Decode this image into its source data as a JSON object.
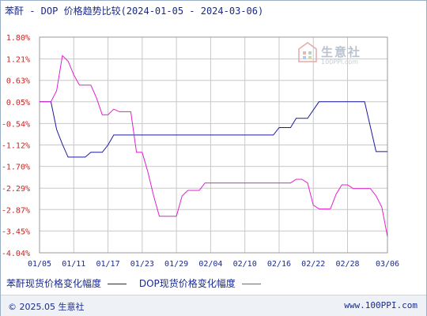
{
  "title": "苯酐 - DOP 价格趋势比较(2024-01-05 - 2024-03-06)",
  "footer": {
    "copyright": "© 2025.05 生意社",
    "url": "www.100PPI.com"
  },
  "watermark": {
    "text": "生意社",
    "url": "100PPI.com"
  },
  "colors": {
    "series_a": "#1a1aa0",
    "series_b": "#e020d0",
    "grid": "#c8c8c8",
    "ytick": "#cc2222",
    "xtick": "#1a2a8c"
  },
  "chart_data": {
    "type": "line",
    "xlim": [
      "2024-01-05",
      "2024-03-06"
    ],
    "ylim": [
      -4.04,
      1.8
    ],
    "ytick_labels": [
      "1.80%",
      "1.21%",
      "0.63%",
      "0.05%",
      "-0.54%",
      "-1.12%",
      "-1.70%",
      "-2.29%",
      "-2.87%",
      "-3.45%",
      "-4.04%"
    ],
    "ytick_values": [
      1.8,
      1.21,
      0.63,
      0.05,
      -0.54,
      -1.12,
      -1.7,
      -2.29,
      -2.87,
      -3.45,
      -4.04
    ],
    "xtick_labels": [
      "01/05",
      "01/11",
      "01/17",
      "01/23",
      "01/29",
      "02/04",
      "02/10",
      "02/16",
      "02/22",
      "02/28",
      "03/06"
    ],
    "xtick_dates": [
      "2024-01-05",
      "2024-01-11",
      "2024-01-17",
      "2024-01-23",
      "2024-01-29",
      "2024-02-04",
      "2024-02-10",
      "2024-02-16",
      "2024-02-22",
      "2024-02-28",
      "2024-03-06"
    ],
    "grid": true,
    "series": [
      {
        "name": "苯酐现货价格变化幅度",
        "points": [
          [
            "2024-01-05",
            0.05
          ],
          [
            "2024-01-07",
            0.05
          ],
          [
            "2024-01-08",
            -0.7
          ],
          [
            "2024-01-09",
            -1.1
          ],
          [
            "2024-01-10",
            -1.45
          ],
          [
            "2024-01-13",
            -1.45
          ],
          [
            "2024-01-14",
            -1.32
          ],
          [
            "2024-01-16",
            -1.32
          ],
          [
            "2024-01-17",
            -1.12
          ],
          [
            "2024-01-18",
            -0.85
          ],
          [
            "2024-02-15",
            -0.85
          ],
          [
            "2024-02-16",
            -0.65
          ],
          [
            "2024-02-18",
            -0.65
          ],
          [
            "2024-02-19",
            -0.4
          ],
          [
            "2024-02-21",
            -0.4
          ],
          [
            "2024-02-23",
            0.05
          ],
          [
            "2024-03-02",
            0.05
          ],
          [
            "2024-03-04",
            -1.3
          ],
          [
            "2024-03-06",
            -1.3
          ]
        ]
      },
      {
        "name": "DOP现货价格变化幅度",
        "points": [
          [
            "2024-01-05",
            0.05
          ],
          [
            "2024-01-07",
            0.05
          ],
          [
            "2024-01-08",
            0.35
          ],
          [
            "2024-01-09",
            1.3
          ],
          [
            "2024-01-10",
            1.15
          ],
          [
            "2024-01-11",
            0.78
          ],
          [
            "2024-01-12",
            0.5
          ],
          [
            "2024-01-14",
            0.5
          ],
          [
            "2024-01-15",
            0.15
          ],
          [
            "2024-01-16",
            -0.3
          ],
          [
            "2024-01-17",
            -0.3
          ],
          [
            "2024-01-18",
            -0.15
          ],
          [
            "2024-01-19",
            -0.22
          ],
          [
            "2024-01-21",
            -0.22
          ],
          [
            "2024-01-22",
            -1.32
          ],
          [
            "2024-01-23",
            -1.32
          ],
          [
            "2024-01-24",
            -1.85
          ],
          [
            "2024-01-25",
            -2.5
          ],
          [
            "2024-01-26",
            -3.05
          ],
          [
            "2024-01-29",
            -3.05
          ],
          [
            "2024-01-30",
            -2.5
          ],
          [
            "2024-01-31",
            -2.35
          ],
          [
            "2024-02-01",
            -2.35
          ],
          [
            "2024-02-02",
            -2.35
          ],
          [
            "2024-02-03",
            -2.15
          ],
          [
            "2024-02-18",
            -2.15
          ],
          [
            "2024-02-19",
            -2.05
          ],
          [
            "2024-02-20",
            -2.05
          ],
          [
            "2024-02-21",
            -2.15
          ],
          [
            "2024-02-22",
            -2.75
          ],
          [
            "2024-02-23",
            -2.85
          ],
          [
            "2024-02-25",
            -2.85
          ],
          [
            "2024-02-26",
            -2.45
          ],
          [
            "2024-02-27",
            -2.2
          ],
          [
            "2024-02-28",
            -2.2
          ],
          [
            "2024-02-29",
            -2.3
          ],
          [
            "2024-03-02",
            -2.3
          ],
          [
            "2024-03-03",
            -2.3
          ],
          [
            "2024-03-04",
            -2.5
          ],
          [
            "2024-03-05",
            -2.8
          ],
          [
            "2024-03-06",
            -3.6
          ]
        ]
      }
    ]
  }
}
